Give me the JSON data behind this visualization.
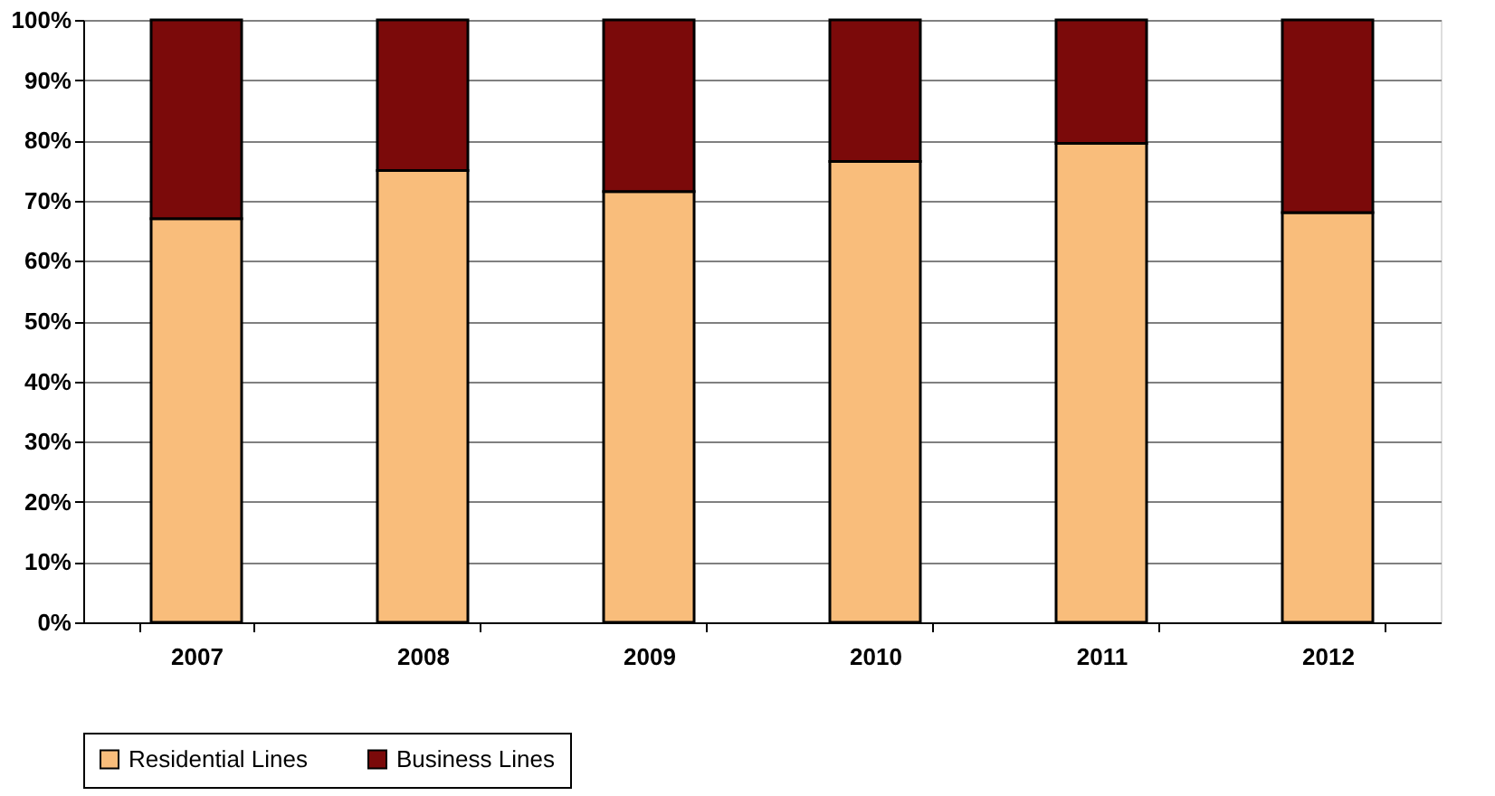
{
  "chart_data": {
    "type": "bar",
    "stacked": true,
    "categories": [
      "2007",
      "2008",
      "2009",
      "2010",
      "2011",
      "2012"
    ],
    "series": [
      {
        "name": "Residential Lines",
        "color": "#f9bd7b",
        "values": [
          67,
          75,
          71.5,
          76.5,
          79.5,
          68
        ]
      },
      {
        "name": "Business Lines",
        "color": "#7b0a0a",
        "values": [
          33,
          25,
          28.5,
          23.5,
          20.5,
          32
        ]
      }
    ],
    "ylim": [
      0,
      100
    ],
    "yticks": [
      {
        "value": 0,
        "label": "0%"
      },
      {
        "value": 10,
        "label": "10%"
      },
      {
        "value": 20,
        "label": "20%"
      },
      {
        "value": 30,
        "label": "30%"
      },
      {
        "value": 40,
        "label": "40%"
      },
      {
        "value": 50,
        "label": "50%"
      },
      {
        "value": 60,
        "label": "60%"
      },
      {
        "value": 70,
        "label": "70%"
      },
      {
        "value": 80,
        "label": "80%"
      },
      {
        "value": 90,
        "label": "90%"
      },
      {
        "value": 100,
        "label": "100%"
      }
    ],
    "grid": "y",
    "legend": "bottom"
  }
}
